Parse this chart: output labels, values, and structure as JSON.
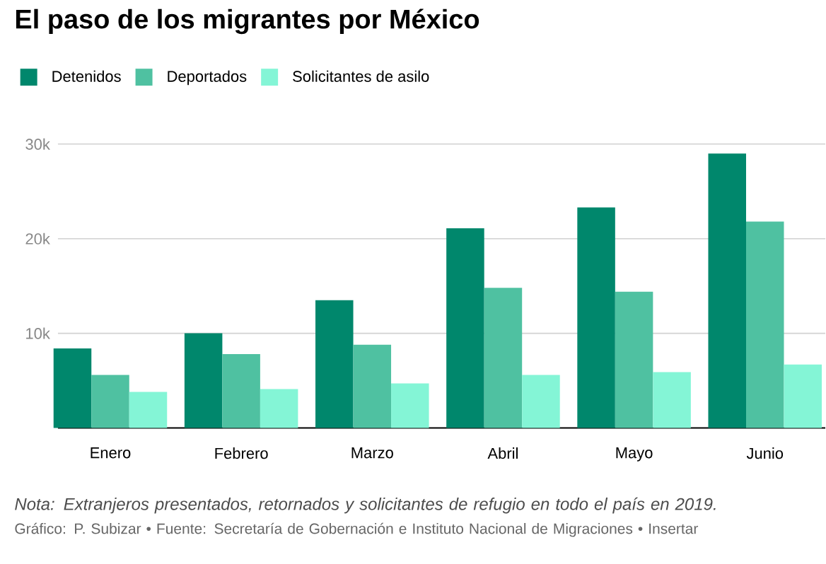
{
  "chart_data": {
    "type": "bar",
    "title": "El paso de los migrantes por México",
    "categories": [
      "Enero",
      "Febrero",
      "Marzo",
      "Abril",
      "Mayo",
      "Junio"
    ],
    "series": [
      {
        "name": "Detenidos",
        "color": "#00876c",
        "values": [
          8400,
          10000,
          13500,
          21100,
          23300,
          29000
        ]
      },
      {
        "name": "Deportados",
        "color": "#4fc1a1",
        "values": [
          5600,
          7800,
          8800,
          14800,
          14400,
          21800
        ]
      },
      {
        "name": "Solicitantes de asilo",
        "color": "#84f5d6",
        "values": [
          3800,
          4100,
          4700,
          5600,
          5900,
          6700
        ]
      }
    ],
    "ylim": [
      0,
      30000
    ],
    "yticks": [
      {
        "value": 10000,
        "label": "10k"
      },
      {
        "value": 20000,
        "label": "20k"
      },
      {
        "value": 30000,
        "label": "30k"
      }
    ],
    "grid": "y",
    "legend": "top left",
    "annotations": [
      "*Nota: Extranjeros presentados, retornados y solicitantes de refugio en todo el país en 2019.*",
      "Gráfico: P. Subizar • Fuente: Secretaría de Gobernación e Instituto Nacional de Migraciones • Insertar"
    ]
  }
}
